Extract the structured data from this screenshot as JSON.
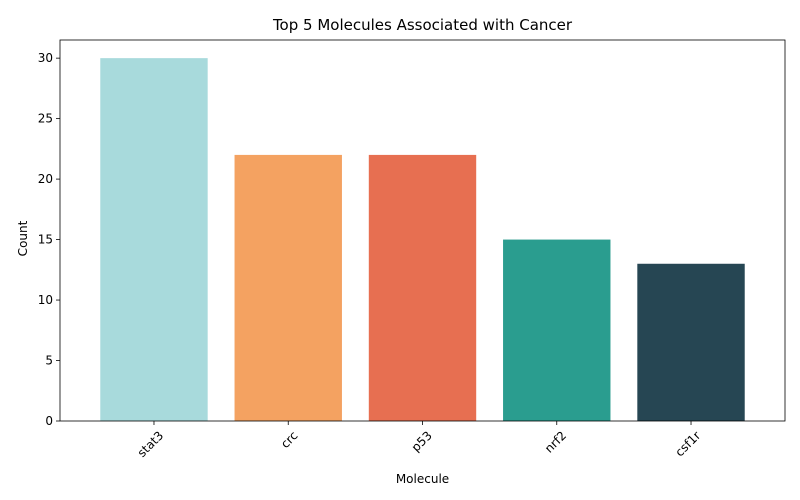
{
  "chart_data": {
    "type": "bar",
    "title": "Top 5 Molecules Associated with Cancer",
    "xlabel": "Molecule",
    "ylabel": "Count",
    "categories": [
      "stat3",
      "crc",
      "p53",
      "nrf2",
      "csf1r"
    ],
    "values": [
      30,
      22,
      22,
      15,
      13
    ],
    "colors": [
      "#a8dadc",
      "#f4a261",
      "#e76f51",
      "#2a9d8f",
      "#264653"
    ],
    "ylim": [
      0,
      31.5
    ],
    "yticks": [
      0,
      5,
      10,
      15,
      20,
      25,
      30
    ],
    "grid": false,
    "xtick_rotation": 45
  }
}
